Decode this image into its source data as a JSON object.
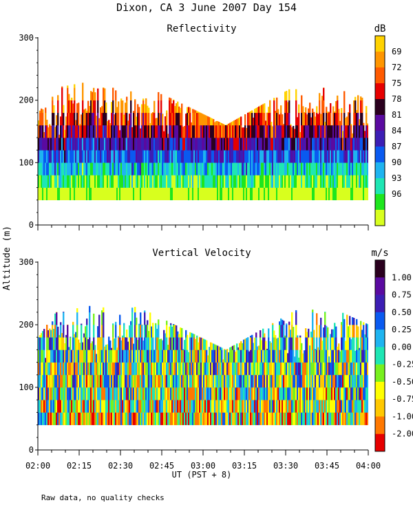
{
  "chart_data": {
    "title": "Dixon, CA   3 June 2007   Day 154",
    "shared_ylabel": "Altitude  (m)",
    "xlabel": "UT  (PST + 8)",
    "x_ticks": [
      "02:00",
      "02:15",
      "02:30",
      "02:45",
      "03:00",
      "03:15",
      "03:30",
      "03:45",
      "04:00"
    ],
    "footnote": "Raw data, no quality checks",
    "panels": [
      {
        "type": "heatmap",
        "title": "Reflectivity",
        "units": "dB",
        "ylim": [
          0,
          300
        ],
        "y_ticks": [
          0,
          100,
          200,
          300
        ],
        "xlim_minutes": [
          0,
          120
        ],
        "colorbar": {
          "labels": [
            "69",
            "72",
            "75",
            "78",
            "81",
            "84",
            "87",
            "90",
            "93",
            "96"
          ],
          "colors": [
            "#d8ff1e",
            "#1ee61e",
            "#1ee6b4",
            "#1eb4f0",
            "#0a5af0",
            "#3c1eb4",
            "#5a0aa0",
            "#2a001e",
            "#e60000",
            "#ff5a00",
            "#ff9600",
            "#ffd200"
          ]
        },
        "profile_cycle": [
          {
            "minute": 0,
            "bottom": 40,
            "top": 180
          },
          {
            "minute": 6,
            "bottom": 40,
            "top": 220
          },
          {
            "minute": 31,
            "bottom": 40,
            "top": 240
          },
          {
            "minute": 68,
            "bottom": 40,
            "top": 160
          },
          {
            "minute": 100,
            "bottom": 40,
            "top": 240
          },
          {
            "minute": 120,
            "bottom": 40,
            "top": 200
          }
        ]
      },
      {
        "type": "heatmap",
        "title": "Vertical Velocity",
        "units": "m/s",
        "ylim": [
          0,
          300
        ],
        "y_ticks": [
          0,
          100,
          200,
          300
        ],
        "xlim_minutes": [
          0,
          120
        ],
        "colorbar": {
          "labels": [
            "1.00",
            "0.75",
            "0.50",
            "0.25",
            "0.00",
            "-0.25",
            "-0.50",
            "-0.75",
            "-1.00",
            "-2.00"
          ],
          "colors": [
            "#e60000",
            "#ff7800",
            "#ffc800",
            "#ffff00",
            "#78f01e",
            "#1ee6b4",
            "#1eb4f0",
            "#0a5af0",
            "#3c1eb4",
            "#5a0aa0",
            "#2a001e"
          ]
        },
        "profile_cycle": [
          {
            "minute": 0,
            "bottom": 40,
            "top": 180
          },
          {
            "minute": 6,
            "bottom": 40,
            "top": 220
          },
          {
            "minute": 31,
            "bottom": 40,
            "top": 240
          },
          {
            "minute": 68,
            "bottom": 40,
            "top": 160
          },
          {
            "minute": 100,
            "bottom": 40,
            "top": 240
          },
          {
            "minute": 120,
            "bottom": 40,
            "top": 200
          }
        ]
      }
    ]
  }
}
